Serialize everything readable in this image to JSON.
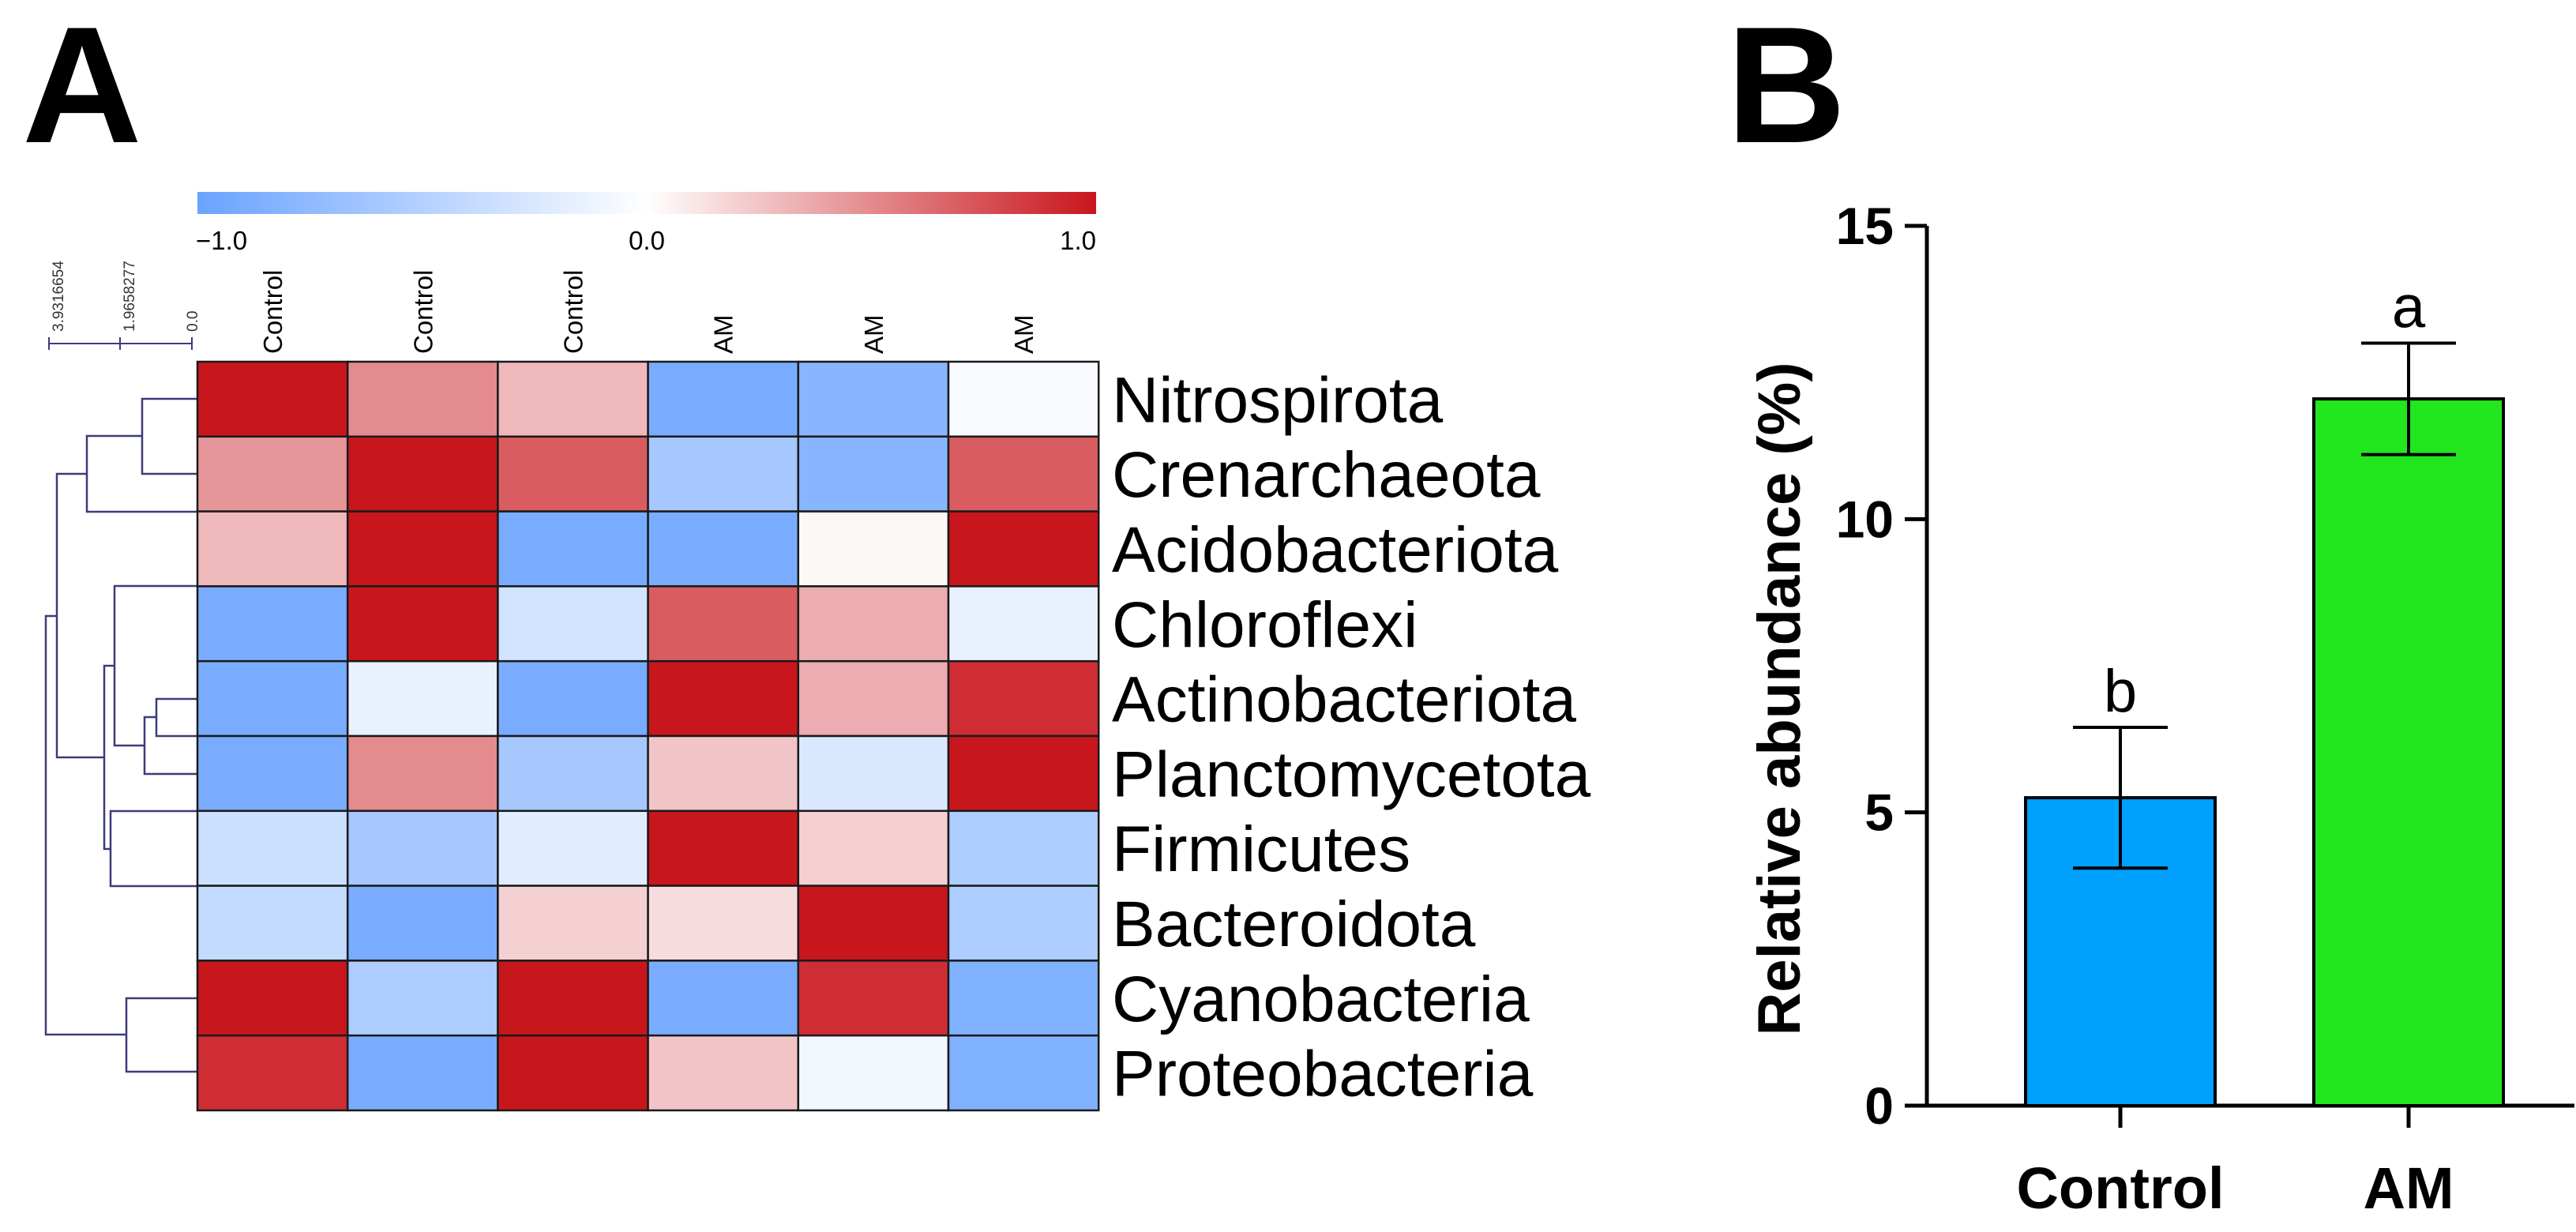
{
  "panels": {
    "a_label": "A",
    "b_label": "B"
  },
  "chart_data": [
    {
      "type": "heatmap",
      "title": "",
      "columns": [
        "Control",
        "Control",
        "Control",
        "AM",
        "AM",
        "AM"
      ],
      "rows": [
        "Nitrospirota",
        "Crenarchaeota",
        "Acidobacteriota",
        "Chloroflexi",
        "Actinobacteriota",
        "Planctomycetota",
        "Firmicutes",
        "Bacteroidota",
        "Cyanobacteria",
        "Proteobacteria"
      ],
      "values": [
        [
          1.0,
          0.5,
          0.3,
          -0.9,
          -0.8,
          -0.05
        ],
        [
          0.45,
          1.0,
          0.7,
          -0.6,
          -0.8,
          0.7
        ],
        [
          0.3,
          1.0,
          -0.9,
          -0.9,
          0.03,
          1.0
        ],
        [
          -0.9,
          1.0,
          -0.3,
          0.7,
          0.35,
          -0.15
        ],
        [
          -0.9,
          -0.15,
          -0.9,
          1.0,
          0.35,
          0.9
        ],
        [
          -0.9,
          0.5,
          -0.6,
          0.25,
          -0.25,
          1.0
        ],
        [
          -0.35,
          -0.6,
          -0.2,
          1.0,
          0.2,
          -0.55
        ],
        [
          -0.4,
          -0.9,
          0.2,
          0.15,
          1.0,
          -0.55
        ],
        [
          1.0,
          -0.55,
          1.0,
          -0.9,
          0.9,
          -0.85
        ],
        [
          0.9,
          -0.9,
          1.0,
          0.25,
          -0.08,
          -0.85
        ]
      ],
      "colorbar": {
        "min_label": "−1.0",
        "mid_label": "0.0",
        "max_label": "1.0",
        "range": [
          -1.0,
          1.0
        ],
        "low_color": "#6aa3ff",
        "mid_color": "#ffffff",
        "high_color": "#c8161d"
      },
      "dendrogram": {
        "scale_labels": [
          "3.9316654",
          "1.9658277",
          "0.0"
        ],
        "scale_values": [
          3.9316654,
          1.9658277,
          0.0
        ],
        "line_color": "#3c3c78"
      }
    },
    {
      "type": "bar",
      "title": "",
      "categories": [
        "Control",
        "AM"
      ],
      "values": [
        5.25,
        12.05
      ],
      "errors": [
        1.2,
        0.95
      ],
      "significance": [
        "b",
        "a"
      ],
      "colors": [
        "#00a0ff",
        "#22e61e"
      ],
      "xlabel": "",
      "ylabel": "Relative abundance (%)",
      "ylim": [
        0,
        15
      ],
      "yticks": [
        0,
        5,
        10,
        15
      ],
      "ytick_labels": [
        "0",
        "5",
        "10",
        "15"
      ]
    }
  ]
}
